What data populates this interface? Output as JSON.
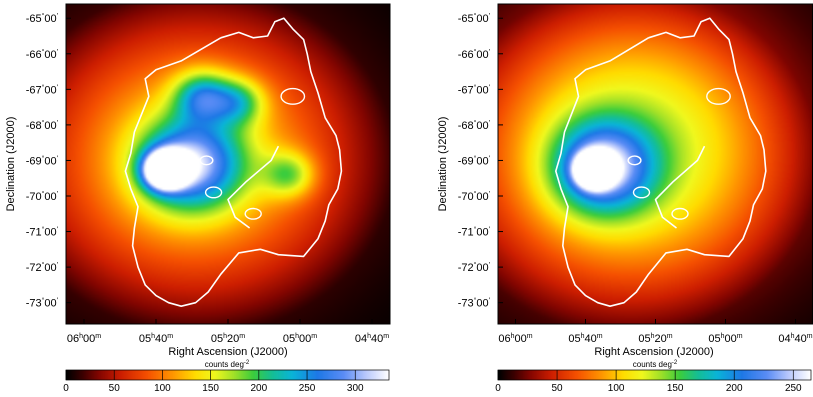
{
  "chart_data": [
    {
      "type": "heatmap",
      "xlabel": "Right Ascension (J2000)",
      "ylabel": "Declination (J2000)",
      "xticks": [
        {
          "h": "06",
          "m": "00"
        },
        {
          "h": "05",
          "m": "40"
        },
        {
          "h": "05",
          "m": "20"
        },
        {
          "h": "05",
          "m": "00"
        },
        {
          "h": "04",
          "m": "40"
        }
      ],
      "yticks": [
        {
          "deg": "-65",
          "min": "00"
        },
        {
          "deg": "-66",
          "min": "00"
        },
        {
          "deg": "-67",
          "min": "00"
        },
        {
          "deg": "-68",
          "min": "00"
        },
        {
          "deg": "-69",
          "min": "00"
        },
        {
          "deg": "-70",
          "min": "00"
        },
        {
          "deg": "-71",
          "min": "00"
        },
        {
          "deg": "-72",
          "min": "00"
        },
        {
          "deg": "-73",
          "min": "00"
        }
      ],
      "xlim_minutes": [
        365,
        275
      ],
      "ylim_deg": [
        -73.6,
        -64.6
      ],
      "colorbar": {
        "label": "counts deg",
        "label_exp": "-2",
        "min": 0,
        "max": 335,
        "ticks": [
          0,
          50,
          100,
          150,
          200,
          250,
          300
        ]
      },
      "sources": [
        {
          "ra_min": 337.5,
          "dec": -69.27,
          "peak": 335,
          "width": 0.35
        },
        {
          "ra_min": 330,
          "dec": -69.1,
          "peak": 190,
          "width": 0.9
        },
        {
          "ra_min": 327,
          "dec": -67.2,
          "peak": 130,
          "width": 0.5
        },
        {
          "ra_min": 317,
          "dec": -67.35,
          "peak": 95,
          "width": 0.45
        },
        {
          "ra_min": 303,
          "dec": -69.4,
          "peak": 90,
          "width": 0.45
        },
        {
          "ra_min": 330,
          "dec": -68.9,
          "peak": 85,
          "width": 2.6
        }
      ]
    },
    {
      "type": "heatmap",
      "xlabel": "Right Ascension (J2000)",
      "ylabel": "Declination (J2000)",
      "xticks": [
        {
          "h": "06",
          "m": "00"
        },
        {
          "h": "05",
          "m": "40"
        },
        {
          "h": "05",
          "m": "20"
        },
        {
          "h": "05",
          "m": "00"
        },
        {
          "h": "04",
          "m": "40"
        }
      ],
      "yticks": [
        {
          "deg": "-65",
          "min": "00"
        },
        {
          "deg": "-66",
          "min": "00"
        },
        {
          "deg": "-67",
          "min": "00"
        },
        {
          "deg": "-68",
          "min": "00"
        },
        {
          "deg": "-69",
          "min": "00"
        },
        {
          "deg": "-70",
          "min": "00"
        },
        {
          "deg": "-71",
          "min": "00"
        },
        {
          "deg": "-72",
          "min": "00"
        },
        {
          "deg": "-73",
          "min": "00"
        }
      ],
      "xlim_minutes": [
        365,
        275
      ],
      "ylim_deg": [
        -73.6,
        -64.6
      ],
      "colorbar": {
        "label": "counts deg",
        "label_exp": "-2",
        "min": 0,
        "max": 265,
        "ticks": [
          0,
          50,
          100,
          150,
          200,
          250
        ]
      },
      "sources": [
        {
          "ra_min": 337.5,
          "dec": -69.27,
          "peak": 265,
          "width": 0.3
        },
        {
          "ra_min": 335,
          "dec": -69.2,
          "peak": 140,
          "width": 0.9
        },
        {
          "ra_min": 326,
          "dec": -68.6,
          "peak": 95,
          "width": 2.8
        }
      ]
    }
  ],
  "contour": {
    "color": "#ffffff",
    "outline_dec_ra": [
      [
        -65.55,
        322
      ],
      [
        -66.2,
        333
      ],
      [
        -66.45,
        340
      ],
      [
        -66.7,
        343
      ],
      [
        -67.2,
        342
      ],
      [
        -67.7,
        344
      ],
      [
        -68.2,
        346
      ],
      [
        -68.8,
        347
      ],
      [
        -69.3,
        348.5
      ],
      [
        -69.8,
        347
      ],
      [
        -70.3,
        345
      ],
      [
        -70.9,
        346
      ],
      [
        -71.4,
        346.5
      ],
      [
        -72.0,
        345
      ],
      [
        -72.5,
        343
      ],
      [
        -72.8,
        340
      ],
      [
        -73.0,
        336.5
      ],
      [
        -73.1,
        333
      ],
      [
        -73.0,
        329
      ],
      [
        -72.7,
        325.5
      ],
      [
        -72.2,
        322
      ],
      [
        -71.6,
        317
      ],
      [
        -71.5,
        311
      ],
      [
        -71.65,
        306
      ],
      [
        -71.7,
        299
      ],
      [
        -71.2,
        295
      ],
      [
        -70.7,
        293
      ],
      [
        -70.25,
        292
      ],
      [
        -69.8,
        289.5
      ],
      [
        -69.3,
        288.5
      ],
      [
        -68.7,
        289
      ],
      [
        -68.3,
        290
      ],
      [
        -67.8,
        293
      ],
      [
        -67.1,
        295
      ],
      [
        -66.5,
        297
      ],
      [
        -66.0,
        298
      ],
      [
        -65.6,
        299
      ],
      [
        -65.3,
        302
      ],
      [
        -65.0,
        304.5
      ],
      [
        -65.1,
        307
      ],
      [
        -65.5,
        309
      ],
      [
        -65.55,
        313
      ],
      [
        -65.4,
        317
      ],
      [
        -65.55,
        322
      ]
    ],
    "inner_arc_dec_ra": [
      [
        -68.6,
        306
      ],
      [
        -69.0,
        308
      ],
      [
        -69.6,
        315
      ],
      [
        -70.1,
        320
      ],
      [
        -70.6,
        318
      ],
      [
        -70.9,
        314
      ]
    ],
    "loops": [
      {
        "dec": -67.2,
        "ra_min": 302,
        "r": 0.22
      },
      {
        "dec": -69.0,
        "ra_min": 326,
        "r": 0.12
      },
      {
        "dec": -69.9,
        "ra_min": 324,
        "r": 0.15
      },
      {
        "dec": -70.5,
        "ra_min": 313,
        "r": 0.15
      }
    ]
  }
}
